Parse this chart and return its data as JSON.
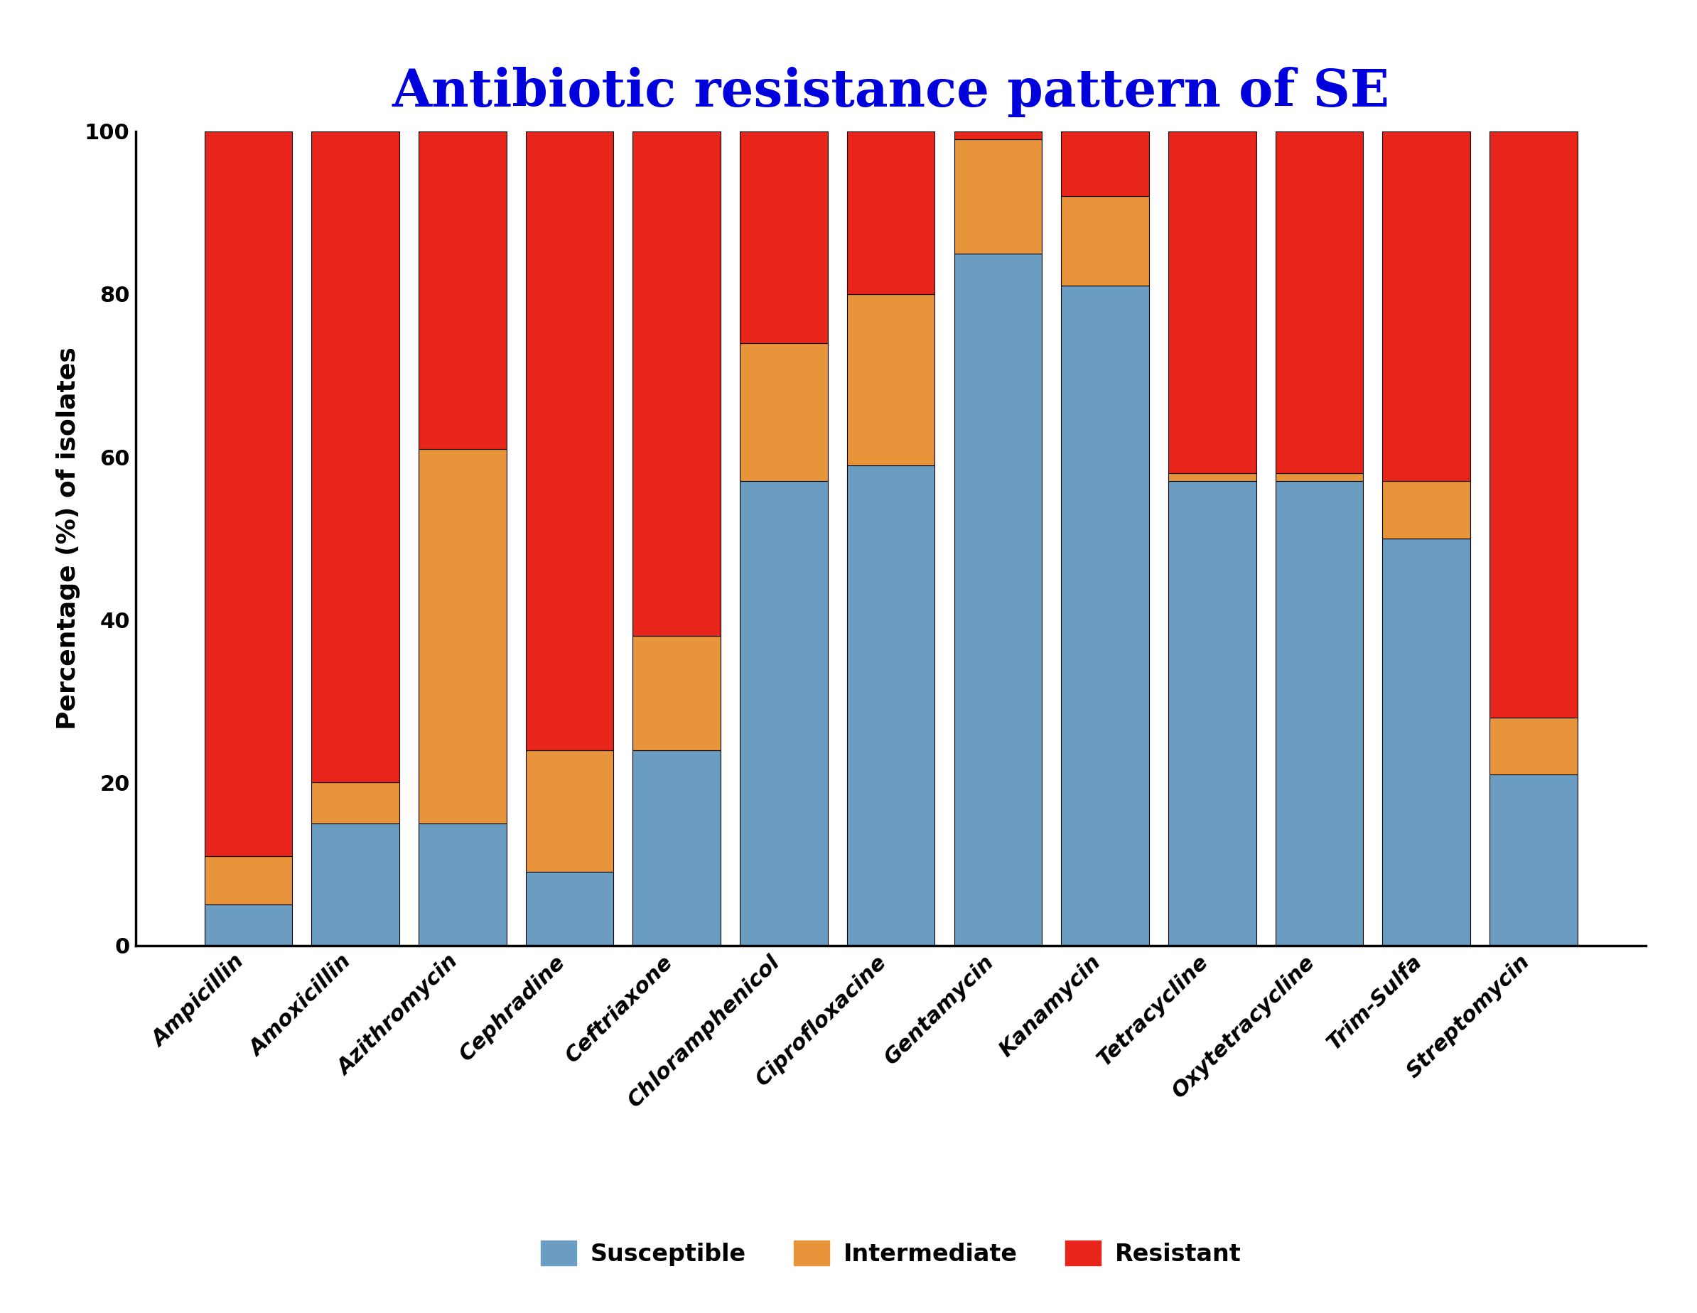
{
  "title": "Antibiotic resistance pattern of SE",
  "ylabel": "Percentage (%) of isolates",
  "categories": [
    "Ampicillin",
    "Amoxicillin",
    "Azithromycin",
    "Cephradine",
    "Ceftriaxone",
    "Chloramphenicol",
    "Ciprofloxacine",
    "Gentamycin",
    "Kanamycin",
    "Tetracycline",
    "Oxytetracycline",
    "Trim-Sulfa",
    "Streptomycin"
  ],
  "susceptible": [
    5,
    15,
    15,
    9,
    24,
    57,
    59,
    85,
    81,
    57,
    57,
    50,
    21
  ],
  "intermediate": [
    6,
    5,
    46,
    15,
    14,
    17,
    21,
    14,
    11,
    1,
    1,
    7,
    7
  ],
  "resistant": [
    89,
    80,
    39,
    76,
    62,
    26,
    20,
    1,
    8,
    42,
    42,
    43,
    72
  ],
  "color_susceptible": "#6B9DC2",
  "color_intermediate": "#E8943A",
  "color_resistant": "#E8251A",
  "title_color": "#0000DD",
  "title_fontsize": 52,
  "ylabel_fontsize": 26,
  "tick_fontsize": 22,
  "legend_fontsize": 24,
  "ylim": [
    0,
    100
  ],
  "yticks": [
    0,
    20,
    40,
    60,
    80,
    100
  ],
  "bar_width": 0.82,
  "background_color": "#FFFFFF",
  "edge_color": "black",
  "edge_width": 0.8
}
